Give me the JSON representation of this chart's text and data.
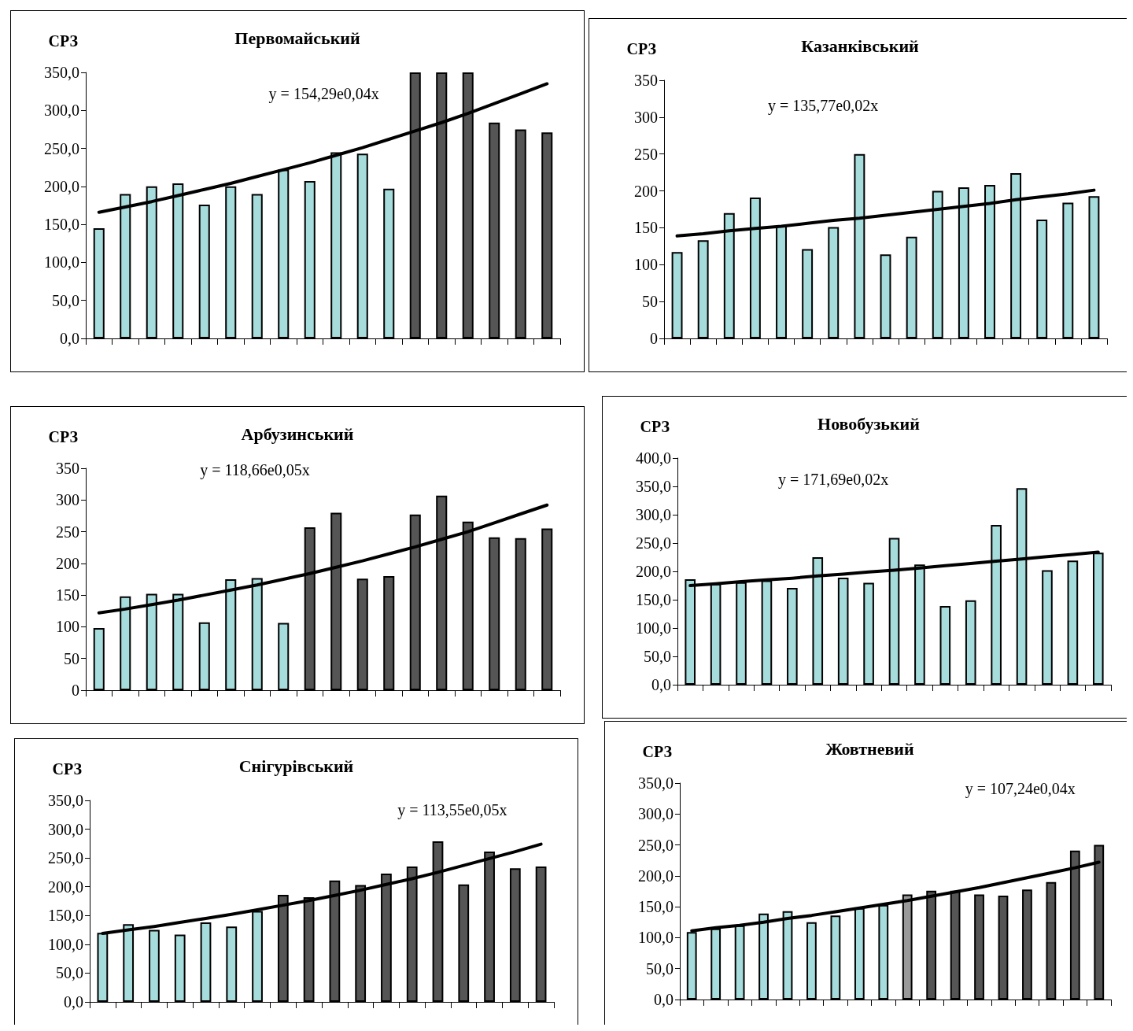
{
  "chart_data": [
    {
      "type": "bar",
      "title": "Первомайський",
      "ylabel": "СРЗ",
      "annotations": [
        "y = 154,29e0,04x"
      ],
      "categories": [
        null,
        null,
        null,
        null,
        null,
        null,
        null,
        null,
        null,
        null,
        null,
        null,
        null,
        null,
        null,
        null,
        null,
        null
      ],
      "ylim": [
        0,
        350
      ],
      "yticks": [
        {
          "value": 0,
          "label": "0,0"
        },
        {
          "value": 50,
          "label": "50,0"
        },
        {
          "value": 100,
          "label": "100,0"
        },
        {
          "value": 150,
          "label": "150,0"
        },
        {
          "value": 200,
          "label": "200,0"
        },
        {
          "value": 250,
          "label": "250,0"
        },
        {
          "value": 300,
          "label": "300,0"
        },
        {
          "value": 350,
          "label": "350,0"
        }
      ],
      "tick_labels": "y",
      "marker": "none",
      "series": [
        {
          "colors": [
            "#a6dcdc",
            "#a6dcdc",
            "#a6dcdc",
            "#a6dcdc",
            "#a6dcdc",
            "#a6dcdc",
            "#a6dcdc",
            "#a6dcdc",
            "#a6dcdc",
            "#a6dcdc",
            "#a6dcdc",
            "#a6dcdc",
            "#555555",
            "#555555",
            "#555555",
            "#555555",
            "#555555",
            "#555555"
          ],
          "values": [
            145,
            190,
            200,
            204,
            176,
            200,
            190,
            222,
            207,
            245,
            243,
            197,
            350,
            350,
            350,
            284,
            275,
            271
          ]
        },
        {
          "type": "line",
          "color": "#000000",
          "values": [
            166,
            173,
            180,
            188,
            196,
            204,
            213,
            222,
            231,
            241,
            251,
            262,
            273,
            284,
            296,
            309,
            322,
            335
          ]
        }
      ]
    },
    {
      "type": "bar",
      "title": "Казанківський",
      "ylabel": "СРЗ",
      "annotations": [
        "y = 135,77e0,02x"
      ],
      "categories": [
        null,
        null,
        null,
        null,
        null,
        null,
        null,
        null,
        null,
        null,
        null,
        null,
        null,
        null,
        null,
        null,
        null
      ],
      "ylim": [
        0,
        350
      ],
      "yticks": [
        0,
        50,
        100,
        150,
        200,
        250,
        300,
        350
      ],
      "tick_labels": "y",
      "marker": "none",
      "series": [
        {
          "color": "#a6dcdc",
          "values": [
            117,
            133,
            170,
            191,
            153,
            121,
            151,
            250,
            114,
            138,
            200,
            205,
            208,
            224,
            161,
            184,
            193
          ]
        },
        {
          "type": "line",
          "color": "#000000",
          "values": [
            139,
            142,
            146,
            149,
            152,
            156,
            160,
            163,
            167,
            171,
            175,
            179,
            183,
            188,
            192,
            196,
            201
          ]
        }
      ]
    },
    {
      "type": "bar",
      "title": "Арбузинський",
      "ylabel": "СРЗ",
      "annotations": [
        "y = 118,66e0,05x"
      ],
      "categories": [
        null,
        null,
        null,
        null,
        null,
        null,
        null,
        null,
        null,
        null,
        null,
        null,
        null,
        null,
        null,
        null,
        null,
        null
      ],
      "ylim": [
        0,
        350
      ],
      "yticks": [
        0,
        50,
        100,
        150,
        200,
        250,
        300,
        350
      ],
      "tick_labels": "y",
      "marker": "none",
      "series": [
        {
          "colors": [
            "#a6dcdc",
            "#a6dcdc",
            "#a6dcdc",
            "#a6dcdc",
            "#a6dcdc",
            "#a6dcdc",
            "#a6dcdc",
            "#a6dcdc",
            "#555555",
            "#555555",
            "#555555",
            "#555555",
            "#555555",
            "#555555",
            "#555555",
            "#555555",
            "#555555",
            "#555555"
          ],
          "values": [
            98,
            148,
            152,
            152,
            107,
            175,
            177,
            106,
            257,
            280,
            176,
            180,
            277,
            307,
            266,
            241,
            240,
            255
          ]
        },
        {
          "type": "line",
          "color": "#000000",
          "values": [
            122,
            128,
            135,
            142,
            150,
            158,
            166,
            175,
            184,
            194,
            204,
            215,
            226,
            238,
            250,
            264,
            278,
            292
          ]
        }
      ]
    },
    {
      "type": "bar",
      "title": "Новобузький",
      "ylabel": "СРЗ",
      "annotations": [
        "y = 171,69e0,02x"
      ],
      "categories": [
        null,
        null,
        null,
        null,
        null,
        null,
        null,
        null,
        null,
        null,
        null,
        null,
        null,
        null,
        null,
        null,
        null
      ],
      "ylim": [
        0,
        400
      ],
      "yticks": [
        {
          "value": 0,
          "label": "0,0"
        },
        {
          "value": 50,
          "label": "50,0"
        },
        {
          "value": 100,
          "label": "100,0"
        },
        {
          "value": 150,
          "label": "150,0"
        },
        {
          "value": 200,
          "label": "200,0"
        },
        {
          "value": 250,
          "label": "250,0"
        },
        {
          "value": 300,
          "label": "300,0"
        },
        {
          "value": 350,
          "label": "350,0"
        },
        {
          "value": 400,
          "label": "400,0"
        }
      ],
      "tick_labels": "y",
      "marker": "none",
      "series": [
        {
          "color": "#a6dcdc",
          "values": [
            186,
            178,
            181,
            184,
            171,
            225,
            189,
            180,
            259,
            212,
            139,
            149,
            282,
            347,
            202,
            219,
            233
          ]
        },
        {
          "type": "line",
          "color": "#000000",
          "values": [
            175,
            178,
            182,
            185,
            188,
            192,
            195,
            199,
            202,
            206,
            210,
            214,
            218,
            222,
            226,
            230,
            234
          ]
        }
      ]
    },
    {
      "type": "bar",
      "title": "Снігурівський",
      "ylabel": "СРЗ",
      "annotations": [
        "y = 113,55e0,05x"
      ],
      "categories": [
        null,
        null,
        null,
        null,
        null,
        null,
        null,
        null,
        null,
        null,
        null,
        null,
        null,
        null,
        null,
        null,
        null,
        null
      ],
      "ylim": [
        0,
        350
      ],
      "yticks": [
        {
          "value": 0,
          "label": "0,0"
        },
        {
          "value": 50,
          "label": "50,0"
        },
        {
          "value": 100,
          "label": "100,0"
        },
        {
          "value": 150,
          "label": "150,0"
        },
        {
          "value": 200,
          "label": "200,0"
        },
        {
          "value": 250,
          "label": "250,0"
        },
        {
          "value": 300,
          "label": "300,0"
        },
        {
          "value": 350,
          "label": "350,0"
        }
      ],
      "tick_labels": "y",
      "marker": "none",
      "series": [
        {
          "colors": [
            "#a6dcdc",
            "#a6dcdc",
            "#a6dcdc",
            "#a6dcdc",
            "#a6dcdc",
            "#a6dcdc",
            "#a6dcdc",
            "#555555",
            "#555555",
            "#555555",
            "#555555",
            "#555555",
            "#555555",
            "#555555",
            "#555555",
            "#555555",
            "#555555",
            "#555555"
          ],
          "values": [
            120,
            135,
            125,
            117,
            138,
            131,
            158,
            186,
            182,
            211,
            203,
            223,
            235,
            279,
            204,
            261,
            232,
            235
          ]
        },
        {
          "type": "line",
          "color": "#000000",
          "values": [
            119,
            125,
            131,
            138,
            145,
            152,
            160,
            168,
            176,
            185,
            194,
            204,
            214,
            225,
            237,
            249,
            261,
            274
          ]
        }
      ]
    },
    {
      "type": "bar",
      "title": "Жовтневий",
      "ylabel": "СРЗ",
      "annotations": [
        "y = 107,24e0,04x"
      ],
      "categories": [
        null,
        null,
        null,
        null,
        null,
        null,
        null,
        null,
        null,
        null,
        null,
        null,
        null,
        null,
        null,
        null,
        null,
        null
      ],
      "ylim": [
        0,
        350
      ],
      "yticks": [
        {
          "value": 0,
          "label": "0,0"
        },
        {
          "value": 50,
          "label": "50,0"
        },
        {
          "value": 100,
          "label": "100,0"
        },
        {
          "value": 150,
          "label": "150,0"
        },
        {
          "value": 200,
          "label": "200,0"
        },
        {
          "value": 250,
          "label": "250,0"
        },
        {
          "value": 300,
          "label": "300,0"
        },
        {
          "value": 350,
          "label": "350,0"
        }
      ],
      "tick_labels": "y",
      "marker": "none",
      "series": [
        {
          "colors": [
            "#a6dcdc",
            "#a6dcdc",
            "#a6dcdc",
            "#a6dcdc",
            "#a6dcdc",
            "#a6dcdc",
            "#a6dcdc",
            "#a6dcdc",
            "#a6dcdc",
            "#999999",
            "#555555",
            "#555555",
            "#555555",
            "#555555",
            "#555555",
            "#555555",
            "#555555",
            "#555555"
          ],
          "values": [
            109,
            115,
            120,
            139,
            143,
            125,
            136,
            148,
            153,
            170,
            176,
            176,
            170,
            168,
            178,
            190,
            241,
            250
          ]
        },
        {
          "type": "line",
          "color": "#000000",
          "values": [
            111,
            116,
            120,
            125,
            131,
            136,
            142,
            148,
            154,
            160,
            167,
            174,
            181,
            189,
            197,
            205,
            213,
            222
          ]
        }
      ]
    }
  ]
}
